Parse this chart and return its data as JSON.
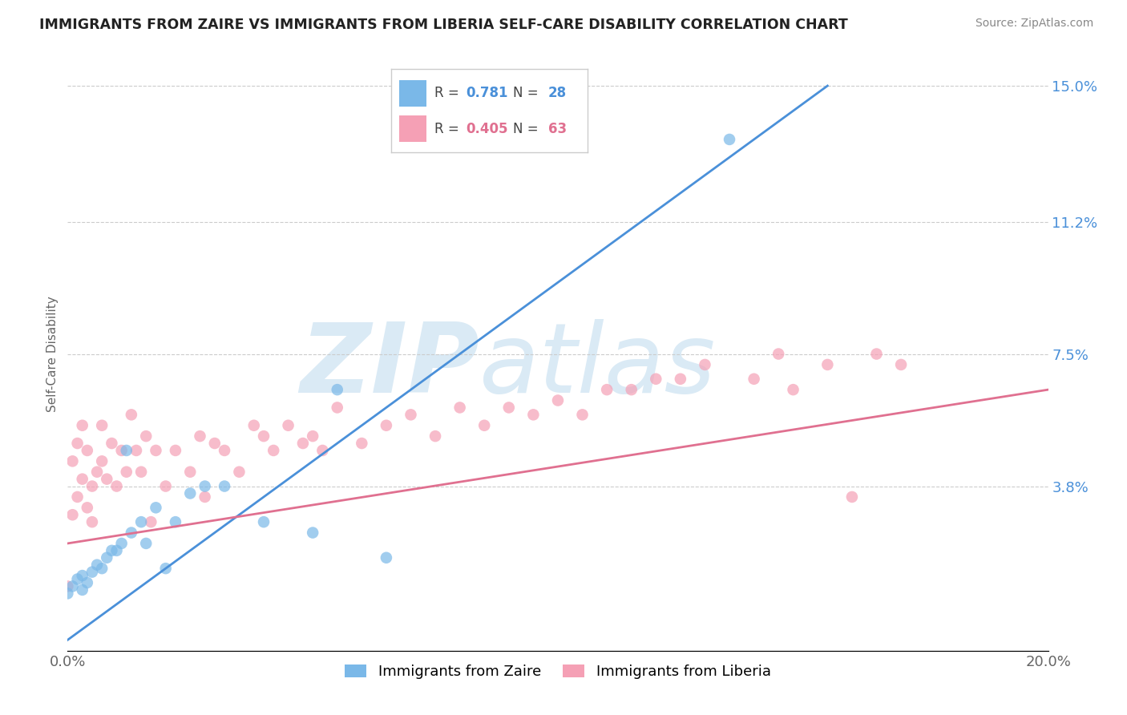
{
  "title": "IMMIGRANTS FROM ZAIRE VS IMMIGRANTS FROM LIBERIA SELF-CARE DISABILITY CORRELATION CHART",
  "source": "Source: ZipAtlas.com",
  "ylabel": "Self-Care Disability",
  "xlim": [
    0.0,
    0.2
  ],
  "ylim": [
    -0.008,
    0.158
  ],
  "yticks_right": [
    0.0,
    0.038,
    0.075,
    0.112,
    0.15
  ],
  "yticklabels_right": [
    "",
    "3.8%",
    "7.5%",
    "11.2%",
    "15.0%"
  ],
  "legend_blue_r": "0.781",
  "legend_blue_n": "28",
  "legend_pink_r": "0.405",
  "legend_pink_n": "63",
  "legend_label_blue": "Immigrants from Zaire",
  "legend_label_pink": "Immigrants from Liberia",
  "color_blue": "#7ab8e8",
  "color_pink": "#f5a0b5",
  "color_blue_line": "#4a90d9",
  "color_pink_line": "#e07090",
  "watermark_color": "#daeaf5",
  "background_color": "#ffffff",
  "blue_line_x0": 0.0,
  "blue_line_y0": -0.005,
  "blue_line_x1": 0.155,
  "blue_line_y1": 0.15,
  "pink_line_x0": 0.0,
  "pink_line_y0": 0.022,
  "pink_line_x1": 0.2,
  "pink_line_y1": 0.065,
  "zaire_x": [
    0.0,
    0.001,
    0.002,
    0.003,
    0.003,
    0.004,
    0.005,
    0.006,
    0.007,
    0.008,
    0.009,
    0.01,
    0.011,
    0.012,
    0.013,
    0.015,
    0.016,
    0.018,
    0.02,
    0.022,
    0.025,
    0.028,
    0.032,
    0.04,
    0.05,
    0.055,
    0.065,
    0.135
  ],
  "zaire_y": [
    0.008,
    0.01,
    0.012,
    0.013,
    0.009,
    0.011,
    0.014,
    0.016,
    0.015,
    0.018,
    0.02,
    0.02,
    0.022,
    0.048,
    0.025,
    0.028,
    0.022,
    0.032,
    0.015,
    0.028,
    0.036,
    0.038,
    0.038,
    0.028,
    0.025,
    0.065,
    0.018,
    0.135
  ],
  "liberia_x": [
    0.0,
    0.001,
    0.001,
    0.002,
    0.002,
    0.003,
    0.003,
    0.004,
    0.004,
    0.005,
    0.005,
    0.006,
    0.007,
    0.007,
    0.008,
    0.009,
    0.01,
    0.011,
    0.012,
    0.013,
    0.014,
    0.015,
    0.016,
    0.017,
    0.018,
    0.02,
    0.022,
    0.025,
    0.027,
    0.028,
    0.03,
    0.032,
    0.035,
    0.038,
    0.04,
    0.042,
    0.045,
    0.048,
    0.05,
    0.052,
    0.055,
    0.06,
    0.065,
    0.07,
    0.075,
    0.08,
    0.085,
    0.09,
    0.095,
    0.1,
    0.105,
    0.11,
    0.115,
    0.12,
    0.125,
    0.13,
    0.14,
    0.145,
    0.148,
    0.155,
    0.16,
    0.165,
    0.17
  ],
  "liberia_y": [
    0.01,
    0.03,
    0.045,
    0.035,
    0.05,
    0.04,
    0.055,
    0.032,
    0.048,
    0.038,
    0.028,
    0.042,
    0.045,
    0.055,
    0.04,
    0.05,
    0.038,
    0.048,
    0.042,
    0.058,
    0.048,
    0.042,
    0.052,
    0.028,
    0.048,
    0.038,
    0.048,
    0.042,
    0.052,
    0.035,
    0.05,
    0.048,
    0.042,
    0.055,
    0.052,
    0.048,
    0.055,
    0.05,
    0.052,
    0.048,
    0.06,
    0.05,
    0.055,
    0.058,
    0.052,
    0.06,
    0.055,
    0.06,
    0.058,
    0.062,
    0.058,
    0.065,
    0.065,
    0.068,
    0.068,
    0.072,
    0.068,
    0.075,
    0.065,
    0.072,
    0.035,
    0.075,
    0.072
  ]
}
